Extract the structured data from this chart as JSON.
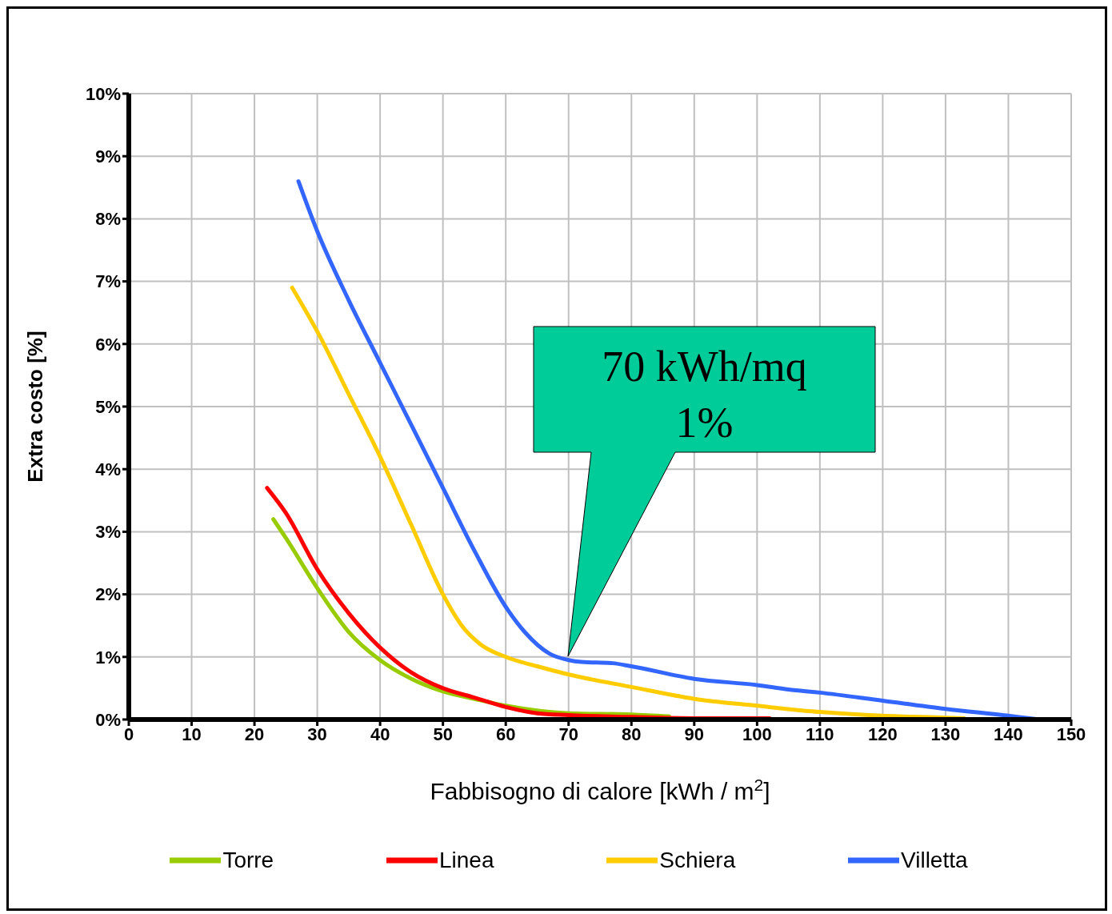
{
  "chart_data": {
    "type": "line",
    "xlabel": "Fabbisogno di calore  [kWh / m$^{2}$]",
    "ylabel": "Extra costo [%]",
    "xlim": [
      0,
      150
    ],
    "xticks": [
      0,
      10,
      20,
      30,
      40,
      50,
      60,
      70,
      80,
      90,
      100,
      110,
      120,
      130,
      140,
      150
    ],
    "ylim": [
      0,
      10
    ],
    "yticks": [
      {
        "value": 0,
        "label": "0%"
      },
      {
        "value": 1,
        "label": "1%"
      },
      {
        "value": 2,
        "label": "2%"
      },
      {
        "value": 3,
        "label": "3%"
      },
      {
        "value": 4,
        "label": "4%"
      },
      {
        "value": 5,
        "label": "5%"
      },
      {
        "value": 6,
        "label": "6%"
      },
      {
        "value": 7,
        "label": "7%"
      },
      {
        "value": 8,
        "label": "8%"
      },
      {
        "value": 9,
        "label": "9%"
      },
      {
        "value": 10,
        "label": "10%"
      }
    ],
    "grid": true,
    "legend": "bottom",
    "marker": "none",
    "line_style": "solid",
    "annotations": [
      "70 kWh/mq\n1%"
    ],
    "series": [
      {
        "name": "Torre",
        "color": "#99cc00",
        "x": [
          23,
          25,
          30,
          35,
          40,
          45,
          50,
          55,
          60,
          70,
          80,
          86
        ],
        "values": [
          3.2,
          2.9,
          2.1,
          1.4,
          0.95,
          0.65,
          0.45,
          0.33,
          0.22,
          0.1,
          0.08,
          0.05
        ]
      },
      {
        "name": "Linea",
        "color": "#ff0000",
        "x": [
          22,
          25,
          30,
          35,
          40,
          45,
          50,
          55,
          60,
          65,
          70,
          80,
          90,
          102
        ],
        "values": [
          3.7,
          3.3,
          2.4,
          1.7,
          1.15,
          0.75,
          0.5,
          0.35,
          0.2,
          0.1,
          0.07,
          0.04,
          0.02,
          0.02
        ]
      },
      {
        "name": "Schiera",
        "color": "#ffcc00",
        "x": [
          26,
          30,
          35,
          40,
          45,
          50,
          53,
          56,
          60,
          65,
          70,
          80,
          90,
          100,
          110,
          120,
          130,
          133
        ],
        "values": [
          6.9,
          6.2,
          5.2,
          4.2,
          3.1,
          2.0,
          1.5,
          1.2,
          1.0,
          0.85,
          0.72,
          0.52,
          0.33,
          0.22,
          0.12,
          0.06,
          0.03,
          0.02
        ]
      },
      {
        "name": "Villetta",
        "color": "#3366ff",
        "x": [
          27,
          30,
          35,
          40,
          45,
          50,
          55,
          60,
          63,
          67,
          70,
          72,
          77,
          80,
          90,
          100,
          105,
          110,
          120,
          130,
          140,
          145
        ],
        "values": [
          8.6,
          7.8,
          6.7,
          5.7,
          4.7,
          3.7,
          2.7,
          1.8,
          1.4,
          1.05,
          0.95,
          0.92,
          0.9,
          0.85,
          0.65,
          0.55,
          0.48,
          0.43,
          0.3,
          0.17,
          0.06,
          0
        ]
      }
    ]
  }
}
